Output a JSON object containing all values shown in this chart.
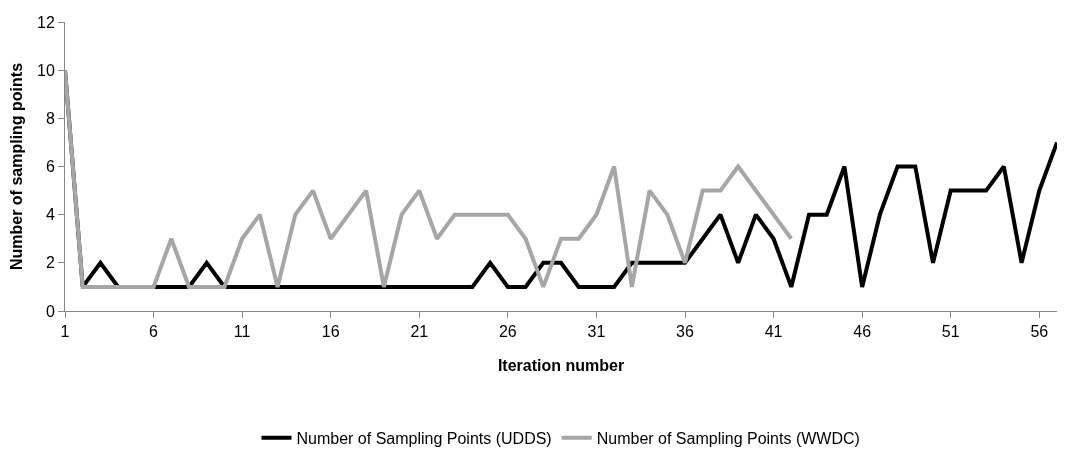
{
  "chart_data": {
    "type": "line",
    "xlabel": "Iteration number",
    "ylabel": "Number of sampling points",
    "x": [
      1,
      2,
      3,
      4,
      5,
      6,
      7,
      8,
      9,
      10,
      11,
      12,
      13,
      14,
      15,
      16,
      17,
      18,
      19,
      20,
      21,
      22,
      23,
      24,
      25,
      26,
      27,
      28,
      29,
      30,
      31,
      32,
      33,
      34,
      35,
      36,
      37,
      38,
      39,
      40,
      41,
      42,
      43,
      44,
      45,
      46,
      47,
      48,
      49,
      50,
      51,
      52,
      53,
      54,
      55,
      56,
      57
    ],
    "series": [
      {
        "name": "Number of Sampling Points (UDDS)",
        "color": "#000000",
        "values": [
          10,
          1,
          2,
          1,
          1,
          1,
          1,
          1,
          2,
          1,
          1,
          1,
          1,
          1,
          1,
          1,
          1,
          1,
          1,
          1,
          1,
          1,
          1,
          1,
          2,
          1,
          1,
          2,
          2,
          1,
          1,
          1,
          2,
          2,
          2,
          2,
          3,
          4,
          2,
          4,
          3,
          1,
          4,
          4,
          6,
          1,
          4,
          6,
          6,
          2,
          5,
          5,
          5,
          6,
          2,
          5,
          7
        ]
      },
      {
        "name": "Number of Sampling Points (WWDC)",
        "color": "#a6a6a6",
        "values": [
          10,
          1,
          1,
          1,
          1,
          1,
          3,
          1,
          1,
          1,
          3,
          4,
          1,
          4,
          5,
          3,
          4,
          5,
          1,
          4,
          5,
          3,
          4,
          4,
          4,
          4,
          3,
          1,
          3,
          3,
          4,
          6,
          1,
          5,
          4,
          2,
          5,
          5,
          6,
          5,
          4,
          3,
          null,
          null,
          null,
          null,
          null,
          null,
          null,
          null,
          null,
          null,
          null,
          null,
          null,
          null,
          null
        ]
      }
    ],
    "xlim": [
      1,
      57
    ],
    "xticks": [
      1,
      6,
      11,
      16,
      21,
      26,
      31,
      36,
      41,
      46,
      51,
      56
    ],
    "ylim": [
      0,
      12
    ],
    "yticks": [
      0,
      2,
      4,
      6,
      8,
      10,
      12
    ],
    "legend": "bottom",
    "marker": "none",
    "line_style": "solid"
  }
}
